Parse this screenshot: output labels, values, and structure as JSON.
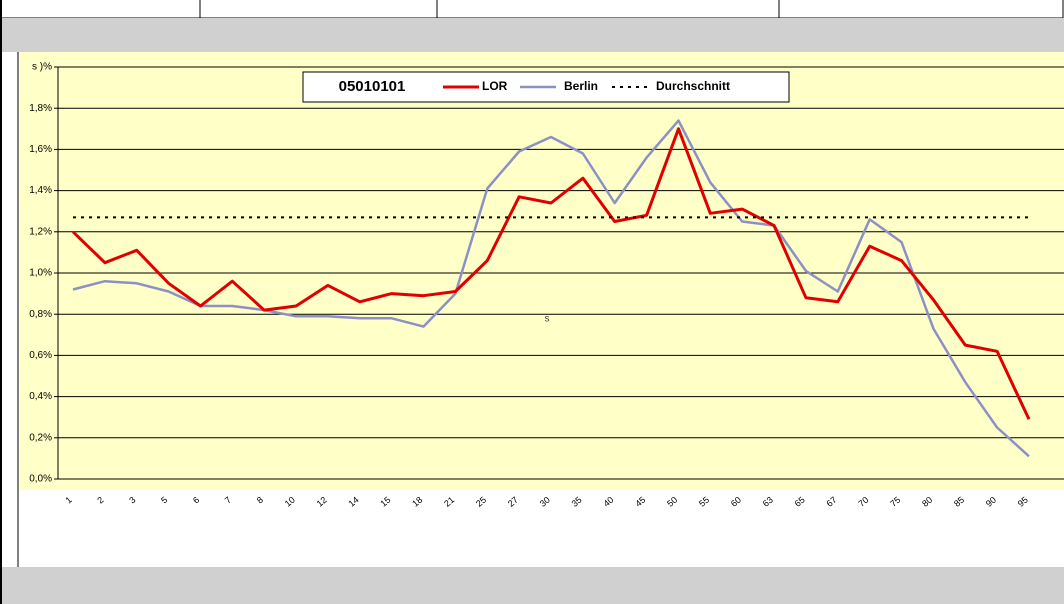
{
  "chart_data": {
    "type": "line",
    "legend_title": "05010101",
    "categories": [
      "1",
      "2",
      "3",
      "5",
      "6",
      "7",
      "8",
      "10",
      "12",
      "14",
      "15",
      "18",
      "21",
      "25",
      "27",
      "30",
      "35",
      "40",
      "45",
      "50",
      "55",
      "60",
      "63",
      "65",
      "67",
      "70",
      "75",
      "80",
      "85",
      "90",
      "95"
    ],
    "series": [
      {
        "name": "LOR",
        "color": "#e00000",
        "values": [
          1.2,
          1.05,
          1.11,
          0.95,
          0.84,
          0.96,
          0.82,
          0.84,
          0.94,
          0.86,
          0.9,
          0.89,
          0.91,
          1.06,
          1.37,
          1.34,
          1.46,
          1.25,
          1.28,
          1.7,
          1.29,
          1.31,
          1.23,
          0.88,
          0.86,
          1.13,
          1.06,
          0.87,
          0.65,
          0.62,
          0.29
        ]
      },
      {
        "name": "Berlin",
        "color": "#8c90c4",
        "values": [
          0.92,
          0.96,
          0.95,
          0.91,
          0.84,
          0.84,
          0.82,
          0.79,
          0.79,
          0.78,
          0.78,
          0.74,
          0.9,
          1.41,
          1.59,
          1.66,
          1.58,
          1.34,
          1.56,
          1.74,
          1.44,
          1.25,
          1.23,
          1.01,
          0.91,
          1.26,
          1.15,
          0.73,
          0.47,
          0.25,
          0.11
        ]
      },
      {
        "name": "Durchschnitt",
        "color": "#000000",
        "dashed": true,
        "values": [
          1.27,
          1.27,
          1.27,
          1.27,
          1.27,
          1.27,
          1.27,
          1.27,
          1.27,
          1.27,
          1.27,
          1.27,
          1.27,
          1.27,
          1.27,
          1.27,
          1.27,
          1.27,
          1.27,
          1.27,
          1.27,
          1.27,
          1.27,
          1.27,
          1.27,
          1.27,
          1.27,
          1.27,
          1.27,
          1.27,
          1.27
        ]
      }
    ],
    "ylim": [
      0,
      2.0
    ],
    "yticks": [
      {
        "value": 0,
        "label": "0,0%"
      },
      {
        "value": 0.2,
        "label": "0,2%"
      },
      {
        "value": 0.4,
        "label": "0,4%"
      },
      {
        "value": 0.6,
        "label": "0,6%"
      },
      {
        "value": 0.8,
        "label": "0,8%"
      },
      {
        "value": 1.0,
        "label": "1,0%"
      },
      {
        "value": 1.2,
        "label": "1,2%"
      },
      {
        "value": 1.4,
        "label": "1,4%"
      },
      {
        "value": 1.6,
        "label": "1,6%"
      },
      {
        "value": 1.8,
        "label": "1,8%"
      },
      {
        "value": 2.0,
        "label": "s )%"
      }
    ],
    "grid": true,
    "annotation": "s"
  }
}
